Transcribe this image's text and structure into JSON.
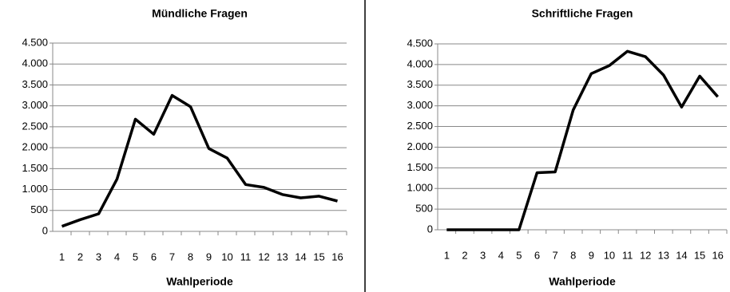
{
  "chart_data": [
    {
      "type": "line",
      "title": "Mündliche Fragen",
      "x_label": "Wahlperiode",
      "categories": [
        "1",
        "2",
        "3",
        "4",
        "5",
        "6",
        "7",
        "8",
        "9",
        "10",
        "11",
        "12",
        "13",
        "14",
        "15",
        "16"
      ],
      "series": [
        {
          "color": "#000000",
          "values": [
            120,
            280,
            420,
            1250,
            2680,
            2320,
            3250,
            2980,
            1980,
            1750,
            1120,
            1050,
            880,
            800,
            840,
            725
          ]
        }
      ],
      "ylim": [
        0,
        4500
      ],
      "yticks": [
        0,
        500,
        {
          "value": 1000,
          "label": "1.000"
        },
        {
          "value": 1500,
          "label": "1.500"
        },
        {
          "value": 2000,
          "label": "2.000"
        },
        {
          "value": 2500,
          "label": "2.500"
        },
        {
          "value": 3000,
          "label": "3.000"
        },
        {
          "value": 3500,
          "label": "3.500"
        },
        {
          "value": 4000,
          "label": "4.000"
        },
        {
          "value": 4500,
          "label": "4.500"
        }
      ],
      "grid": true
    },
    {
      "type": "line",
      "title": "Schriftliche Fragen",
      "x_label": "Wahlperiode",
      "categories": [
        "1",
        "2",
        "3",
        "4",
        "5",
        "6",
        "7",
        "8",
        "9",
        "10",
        "11",
        "12",
        "13",
        "14",
        "15",
        "16"
      ],
      "series": [
        {
          "color": "#000000",
          "values": [
            0,
            0,
            0,
            0,
            0,
            1380,
            1400,
            2900,
            3780,
            3975,
            4320,
            4190,
            3745,
            2970,
            3720,
            3220
          ]
        }
      ],
      "ylim": [
        0,
        4500
      ],
      "yticks": [
        0,
        500,
        {
          "value": 1000,
          "label": "1.000"
        },
        {
          "value": 1500,
          "label": "1.500"
        },
        {
          "value": 2000,
          "label": "2.000"
        },
        {
          "value": 2500,
          "label": "2.500"
        },
        {
          "value": 3000,
          "label": "3.000"
        },
        {
          "value": 3500,
          "label": "3.500"
        },
        {
          "value": 4000,
          "label": "4.000"
        },
        {
          "value": 4500,
          "label": "4.500"
        }
      ],
      "grid": true
    }
  ]
}
